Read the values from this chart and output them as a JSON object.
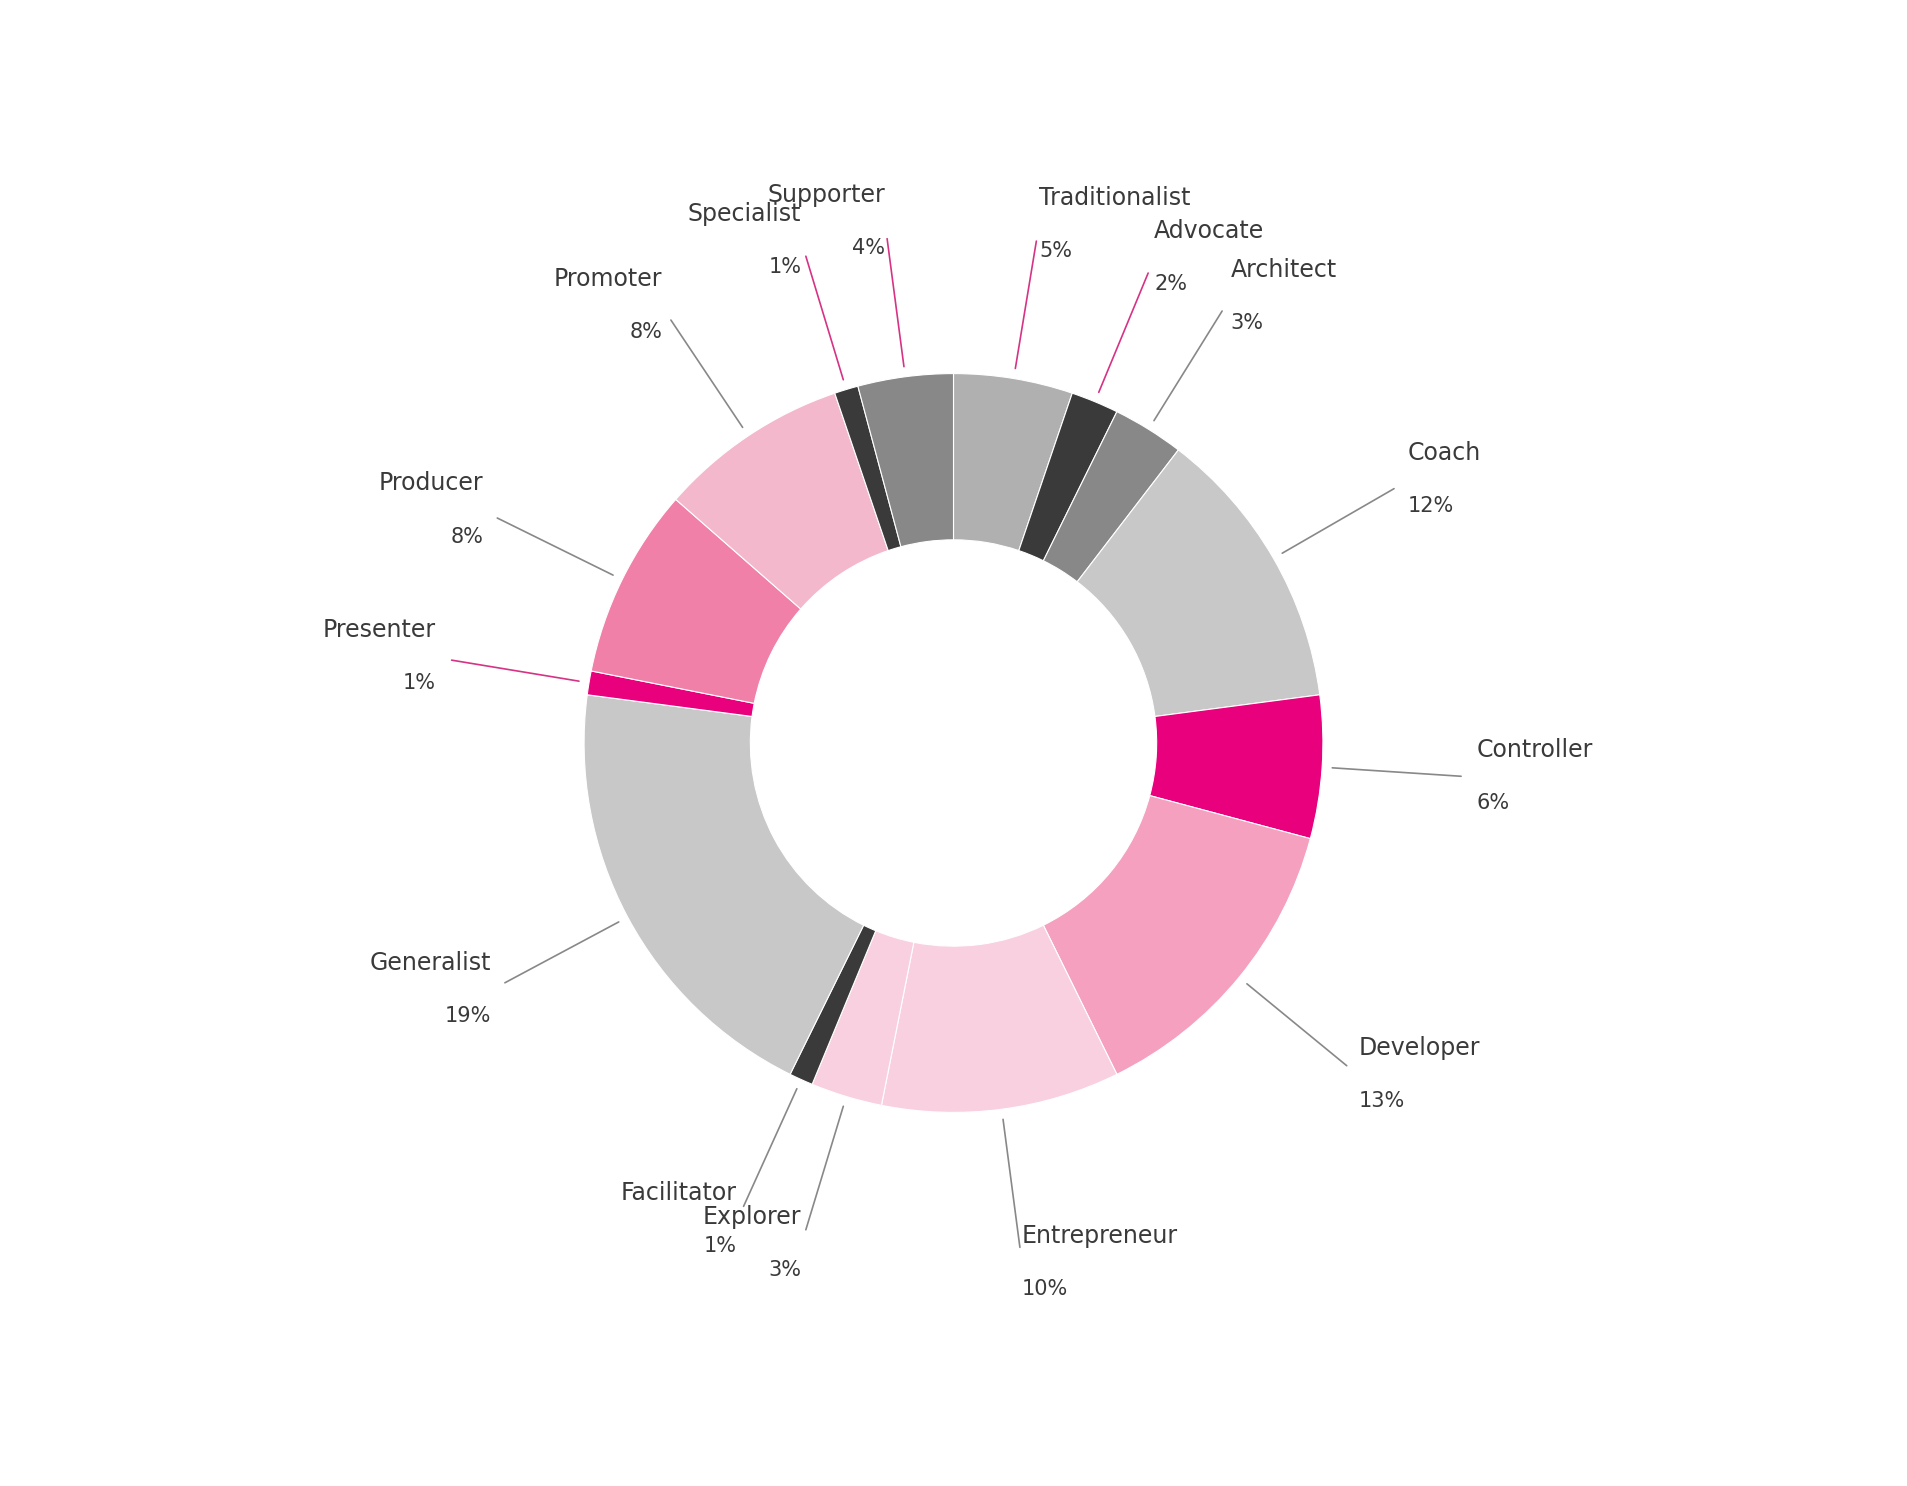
{
  "slices": [
    {
      "label": "Traditionalist",
      "pct": 5,
      "color": "#b0b0b0"
    },
    {
      "label": "Advocate",
      "pct": 2,
      "color": "#3a3a3a"
    },
    {
      "label": "Architect",
      "pct": 3,
      "color": "#888888"
    },
    {
      "label": "Coach",
      "pct": 12,
      "color": "#c8c8c8"
    },
    {
      "label": "Controller",
      "pct": 6,
      "color": "#e8007d"
    },
    {
      "label": "Developer",
      "pct": 13,
      "color": "#f4a0be"
    },
    {
      "label": "Entrepreneur",
      "pct": 10,
      "color": "#f9d0e0"
    },
    {
      "label": "Explorer",
      "pct": 3,
      "color": "#f9d0e0"
    },
    {
      "label": "Facilitator",
      "pct": 1,
      "color": "#3a3a3a"
    },
    {
      "label": "Generalist",
      "pct": 19,
      "color": "#c8c8c8"
    },
    {
      "label": "Presenter",
      "pct": 1,
      "color": "#e8007d"
    },
    {
      "label": "Producer",
      "pct": 8,
      "color": "#f080a8"
    },
    {
      "label": "Promoter",
      "pct": 8,
      "color": "#f4b8cc"
    },
    {
      "label": "Specialist",
      "pct": 1,
      "color": "#3a3a3a"
    },
    {
      "label": "Supporter",
      "pct": 4,
      "color": "#888888"
    }
  ],
  "bg_color": "#ffffff",
  "label_color": "#3a3a3a",
  "line_color_pink": "#d63384",
  "line_color_grey": "#888888",
  "font_size_label": 17,
  "font_size_pct": 15,
  "wedge_linewidth": 0.8,
  "wedge_edgecolor": "#ffffff",
  "start_angle": 90,
  "label_r": 1.42,
  "connector_r": 1.02
}
